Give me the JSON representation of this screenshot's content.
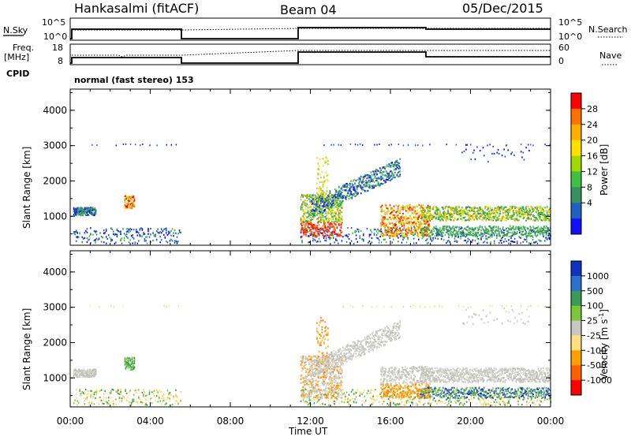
{
  "header": {
    "station": "Hankasalmi (fitACF)",
    "beam": "Beam 04",
    "date": "05/Dec/2015"
  },
  "param_panels": {
    "nsky_label": "N.Sky",
    "nsearch_label": "N.Search",
    "freq_label": "Freq.",
    "freq_unit": "[MHz]",
    "nave_label": "Nave",
    "cpid_label": "CPID",
    "cpid_text": "normal (fast stereo) 153",
    "noise_left_ticks": [
      "10^5",
      "10^0"
    ],
    "noise_right_ticks": [
      "10^5",
      "10^0"
    ],
    "freq_left_ticks": [
      "18",
      "8"
    ],
    "nave_right_ticks": [
      "60",
      "0"
    ]
  },
  "chart_data": [
    {
      "type": "heatmap",
      "name": "power",
      "ylabel": "Slant Range [km]",
      "xlabel": "Time UT",
      "yticks": [
        "4000",
        "3000",
        "2000",
        "1000"
      ],
      "xticks": [
        "00:00",
        "04:00",
        "08:00",
        "12:00",
        "16:00",
        "20:00",
        "00:00"
      ],
      "x_range_hours": [
        0,
        24
      ],
      "y_range_km": [
        180,
        4600
      ],
      "colorbar_label": "Power [dB]",
      "colorbar_ticks": [
        "28",
        "24",
        "20",
        "16",
        "12",
        "8",
        "4"
      ],
      "colorbar_colors": [
        "#ff0000",
        "#ff7000",
        "#ffae00",
        "#ffe000",
        "#a0d800",
        "#40c040",
        "#3a8f60",
        "#2060c0",
        "#1010ff"
      ]
    },
    {
      "type": "heatmap",
      "name": "velocity",
      "ylabel": "Slant Range [km]",
      "xlabel": "Time UT",
      "yticks": [
        "4000",
        "3000",
        "2000",
        "1000"
      ],
      "xticks": [
        "00:00",
        "04:00",
        "08:00",
        "12:00",
        "16:00",
        "20:00",
        "00:00"
      ],
      "x_range_hours": [
        0,
        24
      ],
      "y_range_km": [
        180,
        4600
      ],
      "colorbar_label": "Velocity [m s",
      "colorbar_label_sup": "-1",
      "colorbar_label_end": "]",
      "colorbar_ticks": [
        "1000",
        "500",
        "100",
        "25",
        "-25",
        "-100",
        "-500",
        "-1000"
      ],
      "colorbar_colors": [
        "#1030c0",
        "#2b6fcf",
        "#3a9a5a",
        "#7ac83a",
        "#c8c8c0",
        "#ffe080",
        "#ffa000",
        "#ff6000",
        "#ff0000"
      ]
    }
  ]
}
